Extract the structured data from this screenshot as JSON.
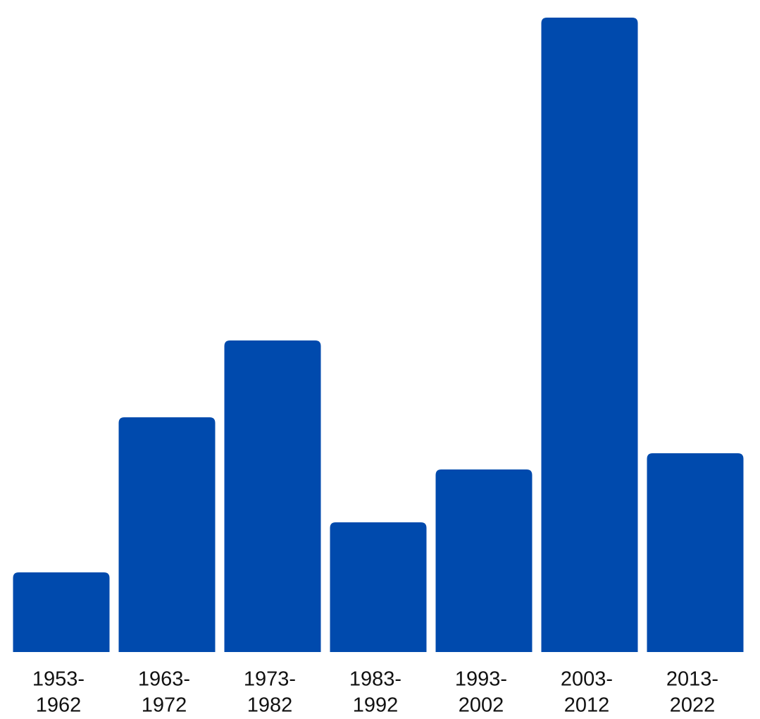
{
  "chart_data": {
    "type": "bar",
    "categories": [
      [
        "1953-",
        "1962"
      ],
      [
        "1963-",
        "1972"
      ],
      [
        "1973-",
        "1982"
      ],
      [
        "1983-",
        "1992"
      ],
      [
        "1993-",
        "2002"
      ],
      [
        "2003-",
        "2012"
      ],
      [
        "2013-",
        "2022"
      ]
    ],
    "values": [
      113,
      333,
      442,
      184,
      259,
      900,
      282
    ],
    "color": "#004aad",
    "ylim": [
      0,
      900
    ]
  }
}
